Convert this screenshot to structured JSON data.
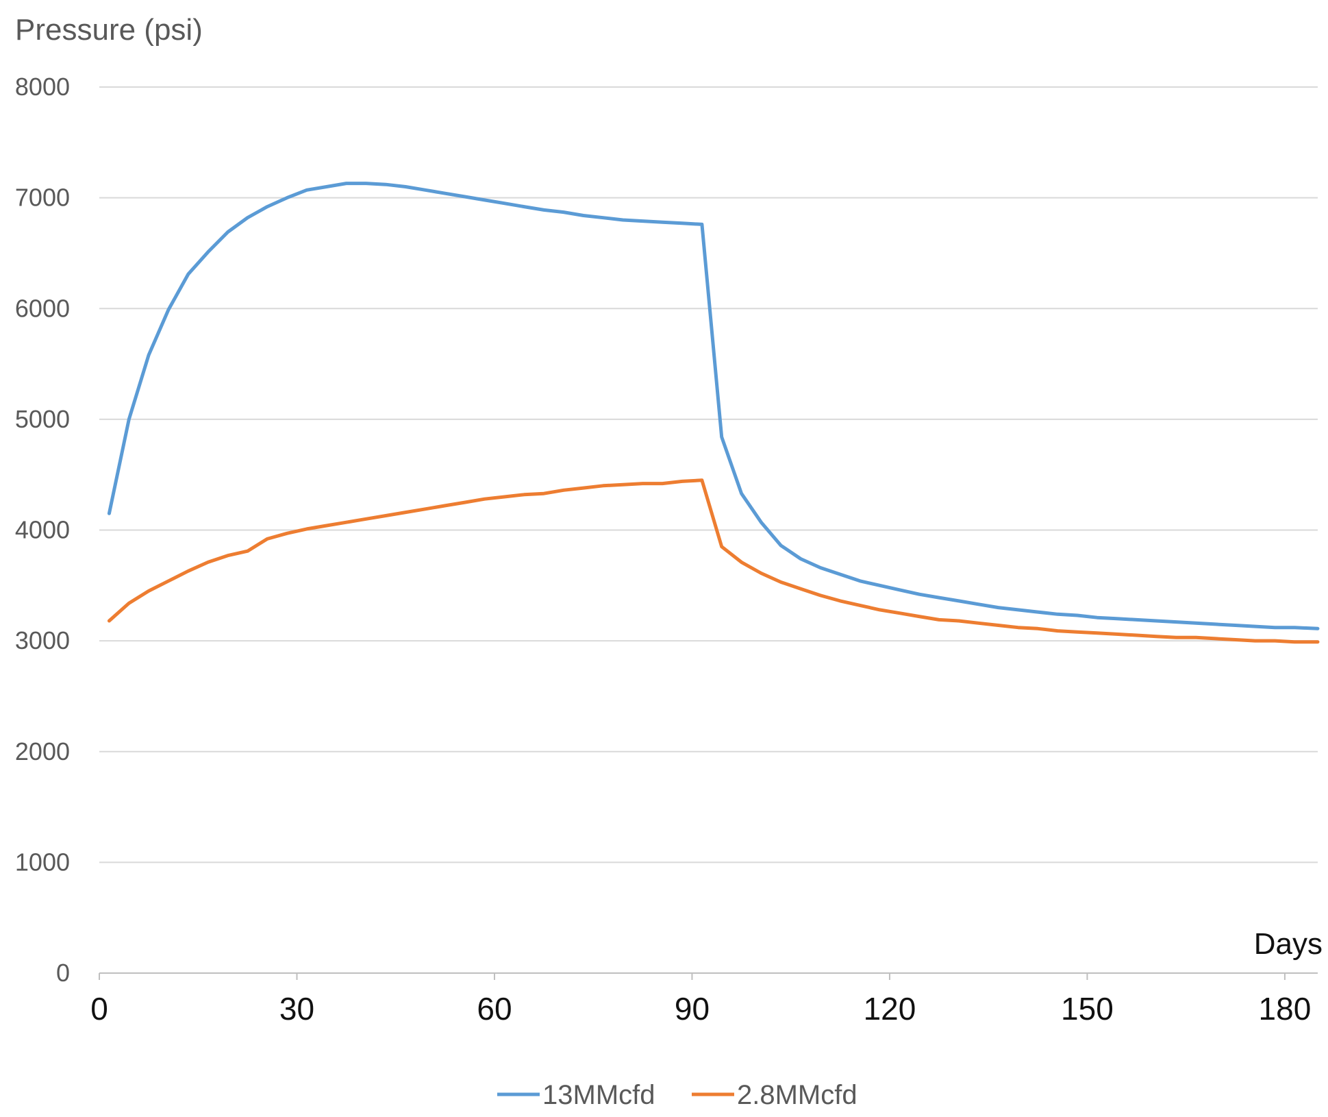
{
  "chart_data": {
    "type": "line",
    "ylabel": "Pressure (psi)",
    "xlabel": "Days",
    "ylim": [
      0,
      8000
    ],
    "xlim": [
      0,
      185
    ],
    "yticks": [
      "0",
      "1000",
      "2000",
      "3000",
      "4000",
      "5000",
      "6000",
      "7000",
      "8000"
    ],
    "xticks": [
      "0",
      "30",
      "60",
      "90",
      "120",
      "150",
      "180"
    ],
    "grid": true,
    "legend_position": "bottom",
    "series": [
      {
        "name": "13MMcfd",
        "color": "#5b9bd5",
        "x": [
          1.5,
          4.5,
          7.5,
          10.5,
          13.5,
          16.5,
          19.5,
          22.5,
          25.5,
          28.5,
          31.5,
          34.5,
          37.5,
          40.5,
          43.5,
          46.5,
          49.5,
          52.5,
          55.5,
          58.5,
          61.5,
          64.5,
          67.5,
          70.5,
          73.5,
          76.5,
          79.5,
          82.5,
          85.5,
          88.5,
          91.5,
          94.5,
          97.5,
          100.5,
          103.5,
          106.5,
          109.5,
          112.5,
          115.5,
          118.5,
          121.5,
          124.5,
          127.5,
          130.5,
          133.5,
          136.5,
          139.5,
          142.5,
          145.5,
          148.5,
          151.5,
          154.5,
          157.5,
          160.5,
          163.5,
          166.5,
          169.5,
          172.5,
          175.5,
          178.5,
          181.5,
          185
        ],
        "y": [
          4150,
          5000,
          5580,
          5990,
          6310,
          6510,
          6690,
          6820,
          6920,
          7000,
          7070,
          7100,
          7130,
          7130,
          7120,
          7100,
          7070,
          7040,
          7010,
          6980,
          6950,
          6920,
          6890,
          6870,
          6840,
          6820,
          6800,
          6790,
          6780,
          6770,
          6760,
          4840,
          4330,
          4070,
          3860,
          3740,
          3660,
          3600,
          3540,
          3500,
          3460,
          3420,
          3390,
          3360,
          3330,
          3300,
          3280,
          3260,
          3240,
          3230,
          3210,
          3200,
          3190,
          3180,
          3170,
          3160,
          3150,
          3140,
          3130,
          3120,
          3120,
          3110
        ]
      },
      {
        "name": "2.8MMcfd",
        "color": "#ed7d31",
        "x": [
          1.5,
          4.5,
          7.5,
          10.5,
          13.5,
          16.5,
          19.5,
          22.5,
          25.5,
          28.5,
          31.5,
          34.5,
          37.5,
          40.5,
          43.5,
          46.5,
          49.5,
          52.5,
          55.5,
          58.5,
          61.5,
          64.5,
          67.5,
          70.5,
          73.5,
          76.5,
          79.5,
          82.5,
          85.5,
          88.5,
          91.5,
          94.5,
          97.5,
          100.5,
          103.5,
          106.5,
          109.5,
          112.5,
          115.5,
          118.5,
          121.5,
          124.5,
          127.5,
          130.5,
          133.5,
          136.5,
          139.5,
          142.5,
          145.5,
          148.5,
          151.5,
          154.5,
          157.5,
          160.5,
          163.5,
          166.5,
          169.5,
          172.5,
          175.5,
          178.5,
          181.5,
          185
        ],
        "y": [
          3180,
          3340,
          3450,
          3540,
          3630,
          3710,
          3770,
          3810,
          3920,
          3970,
          4010,
          4040,
          4070,
          4100,
          4130,
          4160,
          4190,
          4220,
          4250,
          4280,
          4300,
          4320,
          4330,
          4360,
          4380,
          4400,
          4410,
          4420,
          4420,
          4440,
          4450,
          3850,
          3710,
          3610,
          3530,
          3470,
          3410,
          3360,
          3320,
          3280,
          3250,
          3220,
          3190,
          3180,
          3160,
          3140,
          3120,
          3110,
          3090,
          3080,
          3070,
          3060,
          3050,
          3040,
          3030,
          3030,
          3020,
          3010,
          3000,
          3000,
          2990,
          2990
        ]
      }
    ]
  }
}
